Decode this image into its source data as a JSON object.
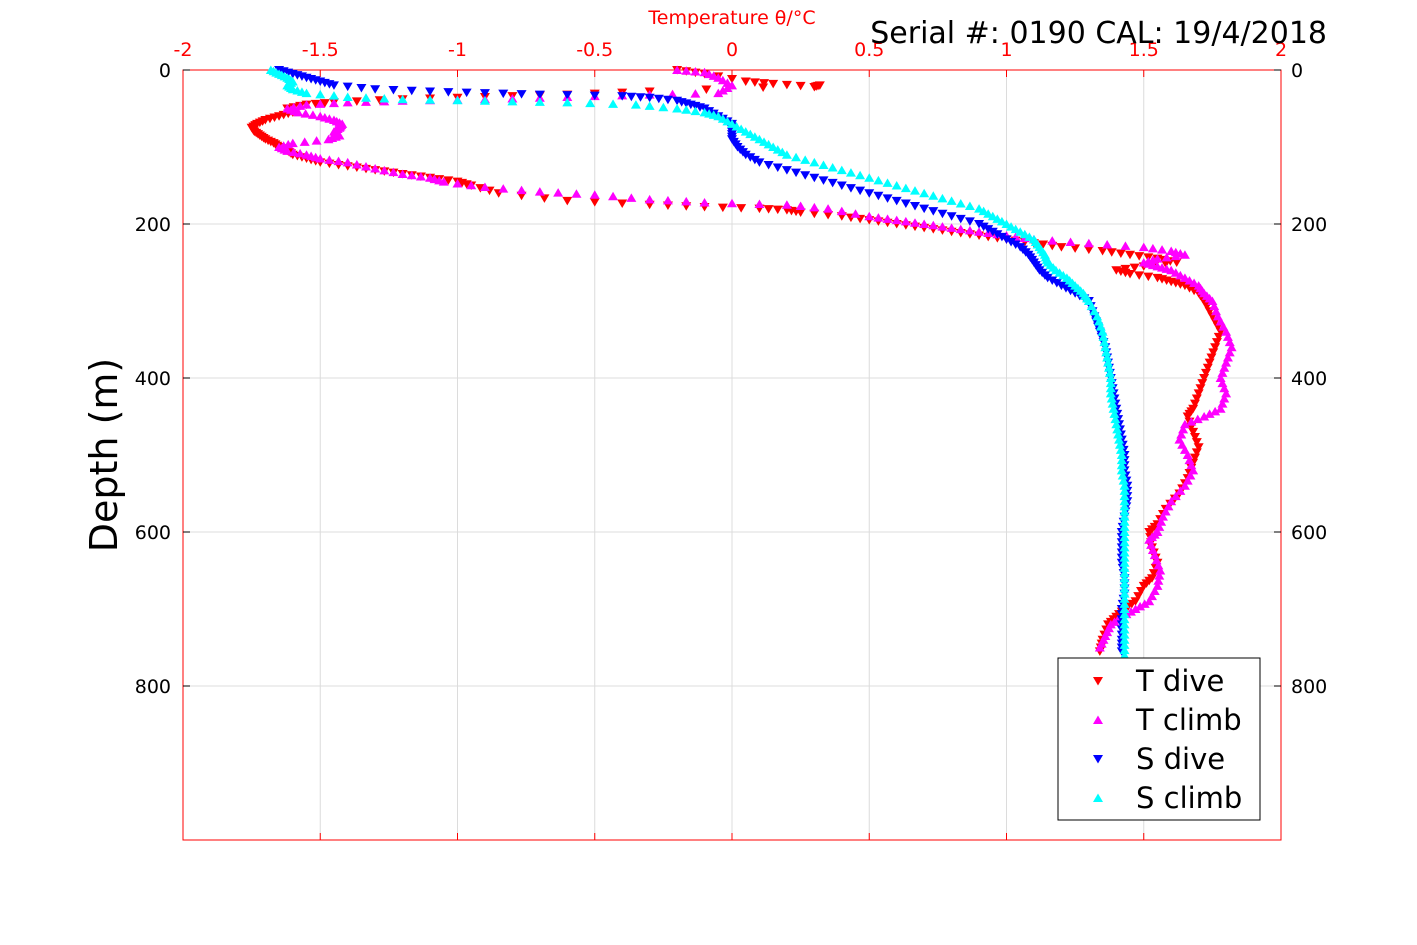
{
  "chart_data": {
    "type": "scatter",
    "title": "Temperature θ/°C",
    "subtitle": "Serial #: 0190  CAL: 19/4/2018",
    "xlabel": "Temperature θ/°C",
    "ylabel": "Depth (m)",
    "xlim": [
      -2,
      2
    ],
    "ylim": [
      0,
      1000
    ],
    "y_reversed": true,
    "grid": true,
    "x_ticks": [
      -2,
      -1.5,
      -1,
      -0.5,
      0,
      0.5,
      1,
      1.5,
      2
    ],
    "x_tick_labels": [
      "-2",
      "-1.5",
      "-1",
      "-0.5",
      "0",
      "0.5",
      "1",
      "1.5",
      "2"
    ],
    "y_ticks": [
      0,
      200,
      400,
      600,
      800
    ],
    "y_tick_labels": [
      "0",
      "200",
      "400",
      "600",
      "800"
    ],
    "legend_position": "bottom-right",
    "colors": {
      "axis": "#ff0000",
      "text": "#000000",
      "grid": "#dcdcdc"
    },
    "series": [
      {
        "name": "T dive",
        "color": "#ff0000",
        "marker": "triangle-down",
        "points": [
          [
            -0.2,
            0
          ],
          [
            -0.1,
            5
          ],
          [
            0.05,
            15
          ],
          [
            0.15,
            18
          ],
          [
            0.3,
            22
          ],
          [
            0.32,
            20
          ],
          [
            -0.3,
            28
          ],
          [
            -0.6,
            32
          ],
          [
            -0.9,
            35
          ],
          [
            -1.2,
            38
          ],
          [
            -1.45,
            42
          ],
          [
            -1.55,
            45
          ],
          [
            -1.62,
            50
          ],
          [
            -1.6,
            55
          ],
          [
            -1.65,
            60
          ],
          [
            -1.7,
            65
          ],
          [
            -1.73,
            70
          ],
          [
            -1.75,
            75
          ],
          [
            -1.74,
            80
          ],
          [
            -1.72,
            85
          ],
          [
            -1.7,
            90
          ],
          [
            -1.67,
            95
          ],
          [
            -1.65,
            100
          ],
          [
            -1.62,
            105
          ],
          [
            -1.6,
            110
          ],
          [
            -1.55,
            115
          ],
          [
            -1.5,
            120
          ],
          [
            -1.4,
            125
          ],
          [
            -1.3,
            130
          ],
          [
            -1.2,
            135
          ],
          [
            -1.1,
            140
          ],
          [
            -1.0,
            145
          ],
          [
            -0.95,
            150
          ],
          [
            -0.85,
            160
          ],
          [
            -0.6,
            170
          ],
          [
            -0.3,
            175
          ],
          [
            -0.1,
            178
          ],
          [
            0.1,
            180
          ],
          [
            0.2,
            182
          ],
          [
            0.25,
            185
          ],
          [
            0.4,
            190
          ],
          [
            0.5,
            195
          ],
          [
            0.6,
            200
          ],
          [
            0.7,
            205
          ],
          [
            0.8,
            210
          ],
          [
            0.9,
            215
          ],
          [
            1.0,
            220
          ],
          [
            1.1,
            225
          ],
          [
            1.2,
            230
          ],
          [
            1.35,
            235
          ],
          [
            1.45,
            240
          ],
          [
            1.55,
            245
          ],
          [
            1.62,
            250
          ],
          [
            1.5,
            255
          ],
          [
            1.4,
            260
          ],
          [
            1.45,
            265
          ],
          [
            1.55,
            270
          ],
          [
            1.6,
            275
          ],
          [
            1.65,
            280
          ],
          [
            1.7,
            290
          ],
          [
            1.72,
            300
          ],
          [
            1.75,
            320
          ],
          [
            1.78,
            340
          ],
          [
            1.76,
            360
          ],
          [
            1.74,
            380
          ],
          [
            1.72,
            400
          ],
          [
            1.7,
            420
          ],
          [
            1.68,
            440
          ],
          [
            1.66,
            450
          ],
          [
            1.68,
            470
          ],
          [
            1.7,
            490
          ],
          [
            1.68,
            510
          ],
          [
            1.66,
            530
          ],
          [
            1.63,
            550
          ],
          [
            1.58,
            570
          ],
          [
            1.55,
            590
          ],
          [
            1.52,
            600
          ],
          [
            1.53,
            620
          ],
          [
            1.55,
            640
          ],
          [
            1.53,
            660
          ],
          [
            1.5,
            670
          ],
          [
            1.47,
            690
          ],
          [
            1.43,
            700
          ],
          [
            1.4,
            710
          ],
          [
            1.37,
            720
          ],
          [
            1.35,
            740
          ],
          [
            1.34,
            755
          ]
        ]
      },
      {
        "name": "T climb",
        "color": "#ff00ff",
        "marker": "triangle-up",
        "points": [
          [
            -0.2,
            0
          ],
          [
            -0.1,
            3
          ],
          [
            -0.05,
            10
          ],
          [
            0.0,
            20
          ],
          [
            -0.05,
            30
          ],
          [
            -0.3,
            32
          ],
          [
            -0.6,
            35
          ],
          [
            -0.9,
            38
          ],
          [
            -1.2,
            40
          ],
          [
            -1.4,
            42
          ],
          [
            -1.55,
            45
          ],
          [
            -1.62,
            50
          ],
          [
            -1.58,
            55
          ],
          [
            -1.5,
            60
          ],
          [
            -1.45,
            65
          ],
          [
            -1.42,
            70
          ],
          [
            -1.43,
            75
          ],
          [
            -1.45,
            80
          ],
          [
            -1.43,
            85
          ],
          [
            -1.47,
            90
          ],
          [
            -1.6,
            95
          ],
          [
            -1.65,
            100
          ],
          [
            -1.62,
            105
          ],
          [
            -1.55,
            110
          ],
          [
            -1.5,
            115
          ],
          [
            -1.4,
            120
          ],
          [
            -1.3,
            128
          ],
          [
            -1.2,
            135
          ],
          [
            -1.1,
            140
          ],
          [
            -1.05,
            145
          ],
          [
            -0.9,
            152
          ],
          [
            -0.7,
            158
          ],
          [
            -0.5,
            162
          ],
          [
            -0.3,
            168
          ],
          [
            -0.1,
            172
          ],
          [
            0.2,
            175
          ],
          [
            0.35,
            180
          ],
          [
            0.5,
            190
          ],
          [
            0.6,
            195
          ],
          [
            0.7,
            200
          ],
          [
            0.8,
            205
          ],
          [
            0.9,
            210
          ],
          [
            1.0,
            215
          ],
          [
            1.1,
            220
          ],
          [
            1.3,
            225
          ],
          [
            1.5,
            230
          ],
          [
            1.6,
            235
          ],
          [
            1.65,
            240
          ],
          [
            1.55,
            245
          ],
          [
            1.5,
            250
          ],
          [
            1.55,
            255
          ],
          [
            1.6,
            260
          ],
          [
            1.65,
            270
          ],
          [
            1.7,
            280
          ],
          [
            1.72,
            290
          ],
          [
            1.75,
            300
          ],
          [
            1.77,
            320
          ],
          [
            1.8,
            340
          ],
          [
            1.82,
            360
          ],
          [
            1.8,
            380
          ],
          [
            1.78,
            400
          ],
          [
            1.8,
            420
          ],
          [
            1.78,
            440
          ],
          [
            1.72,
            450
          ],
          [
            1.65,
            460
          ],
          [
            1.63,
            480
          ],
          [
            1.66,
            500
          ],
          [
            1.68,
            520
          ],
          [
            1.65,
            540
          ],
          [
            1.6,
            560
          ],
          [
            1.57,
            580
          ],
          [
            1.55,
            600
          ],
          [
            1.52,
            610
          ],
          [
            1.54,
            630
          ],
          [
            1.56,
            650
          ],
          [
            1.55,
            670
          ],
          [
            1.52,
            690
          ],
          [
            1.47,
            700
          ],
          [
            1.42,
            710
          ],
          [
            1.38,
            720
          ],
          [
            1.36,
            735
          ],
          [
            1.34,
            750
          ]
        ]
      },
      {
        "name": "S dive",
        "color": "#0000ff",
        "marker": "triangle-down",
        "points": [
          [
            -1.65,
            0
          ],
          [
            -1.6,
            5
          ],
          [
            -1.55,
            10
          ],
          [
            -1.5,
            15
          ],
          [
            -1.45,
            20
          ],
          [
            -1.3,
            25
          ],
          [
            -1.1,
            28
          ],
          [
            -0.9,
            30
          ],
          [
            -0.7,
            32
          ],
          [
            -0.4,
            34
          ],
          [
            -0.3,
            36
          ],
          [
            -0.2,
            40
          ],
          [
            -0.15,
            45
          ],
          [
            -0.1,
            50
          ],
          [
            -0.05,
            60
          ],
          [
            0.0,
            70
          ],
          [
            0.0,
            80
          ],
          [
            0.0,
            90
          ],
          [
            0.02,
            100
          ],
          [
            0.05,
            110
          ],
          [
            0.1,
            120
          ],
          [
            0.2,
            130
          ],
          [
            0.3,
            140
          ],
          [
            0.4,
            150
          ],
          [
            0.5,
            160
          ],
          [
            0.6,
            170
          ],
          [
            0.7,
            180
          ],
          [
            0.8,
            190
          ],
          [
            0.9,
            200
          ],
          [
            0.95,
            210
          ],
          [
            1.0,
            220
          ],
          [
            1.05,
            230
          ],
          [
            1.08,
            240
          ],
          [
            1.1,
            250
          ],
          [
            1.12,
            260
          ],
          [
            1.15,
            270
          ],
          [
            1.2,
            280
          ],
          [
            1.25,
            290
          ],
          [
            1.3,
            300
          ],
          [
            1.32,
            320
          ],
          [
            1.34,
            340
          ],
          [
            1.36,
            360
          ],
          [
            1.37,
            380
          ],
          [
            1.38,
            400
          ],
          [
            1.39,
            420
          ],
          [
            1.4,
            440
          ],
          [
            1.41,
            460
          ],
          [
            1.42,
            480
          ],
          [
            1.43,
            500
          ],
          [
            1.43,
            520
          ],
          [
            1.44,
            540
          ],
          [
            1.44,
            560
          ],
          [
            1.43,
            580
          ],
          [
            1.42,
            600
          ],
          [
            1.42,
            620
          ],
          [
            1.42,
            640
          ],
          [
            1.43,
            660
          ],
          [
            1.43,
            680
          ],
          [
            1.42,
            700
          ],
          [
            1.42,
            720
          ],
          [
            1.42,
            740
          ],
          [
            1.42,
            755
          ]
        ]
      },
      {
        "name": "S climb",
        "color": "#00ffff",
        "marker": "triangle-up",
        "points": [
          [
            -1.68,
            0
          ],
          [
            -1.65,
            5
          ],
          [
            -1.62,
            10
          ],
          [
            -1.6,
            15
          ],
          [
            -1.62,
            20
          ],
          [
            -1.6,
            25
          ],
          [
            -1.55,
            30
          ],
          [
            -1.4,
            35
          ],
          [
            -1.2,
            38
          ],
          [
            -0.9,
            40
          ],
          [
            -0.6,
            42
          ],
          [
            -0.35,
            45
          ],
          [
            -0.2,
            50
          ],
          [
            -0.1,
            55
          ],
          [
            -0.05,
            60
          ],
          [
            0.0,
            70
          ],
          [
            0.05,
            80
          ],
          [
            0.1,
            90
          ],
          [
            0.15,
            100
          ],
          [
            0.2,
            110
          ],
          [
            0.3,
            120
          ],
          [
            0.4,
            130
          ],
          [
            0.5,
            140
          ],
          [
            0.6,
            150
          ],
          [
            0.7,
            160
          ],
          [
            0.8,
            170
          ],
          [
            0.9,
            180
          ],
          [
            0.95,
            190
          ],
          [
            1.0,
            200
          ],
          [
            1.05,
            210
          ],
          [
            1.1,
            220
          ],
          [
            1.12,
            230
          ],
          [
            1.14,
            240
          ],
          [
            1.15,
            250
          ],
          [
            1.18,
            260
          ],
          [
            1.22,
            270
          ],
          [
            1.25,
            280
          ],
          [
            1.28,
            290
          ],
          [
            1.3,
            300
          ],
          [
            1.33,
            320
          ],
          [
            1.35,
            340
          ],
          [
            1.36,
            360
          ],
          [
            1.37,
            380
          ],
          [
            1.38,
            400
          ],
          [
            1.38,
            420
          ],
          [
            1.39,
            440
          ],
          [
            1.4,
            460
          ],
          [
            1.41,
            480
          ],
          [
            1.42,
            500
          ],
          [
            1.42,
            520
          ],
          [
            1.43,
            540
          ],
          [
            1.43,
            560
          ],
          [
            1.43,
            580
          ],
          [
            1.43,
            600
          ],
          [
            1.43,
            620
          ],
          [
            1.43,
            640
          ],
          [
            1.43,
            660
          ],
          [
            1.43,
            680
          ],
          [
            1.43,
            700
          ],
          [
            1.43,
            720
          ],
          [
            1.43,
            740
          ],
          [
            1.43,
            760
          ]
        ]
      }
    ]
  }
}
